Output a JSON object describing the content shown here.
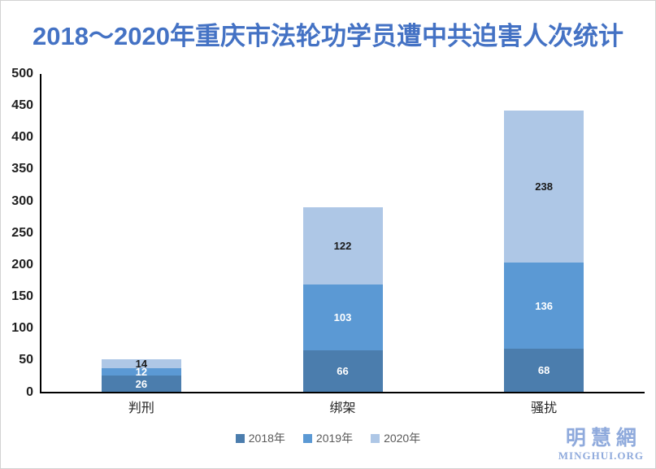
{
  "title": "2018～2020年重庆市法轮功学员遭中共迫害人次统计",
  "title_color": "#4472C4",
  "chart_data": {
    "type": "bar",
    "stacked": true,
    "title": "2018～2020年重庆市法轮功学员遭中共迫害人次统计",
    "categories": [
      "判刑",
      "绑架",
      "骚扰"
    ],
    "series": [
      {
        "name": "2018年",
        "color": "#4B7DAD",
        "label_color": "#ffffff",
        "values": [
          26,
          66,
          68
        ]
      },
      {
        "name": "2019年",
        "color": "#5B99D4",
        "label_color": "#ffffff",
        "values": [
          12,
          103,
          136
        ]
      },
      {
        "name": "2020年",
        "color": "#AEC7E6",
        "label_color": "#1a1a1a",
        "values": [
          14,
          122,
          238
        ]
      }
    ],
    "totals": [
      52,
      291,
      442
    ],
    "xlabel": "",
    "ylabel": "",
    "ylim": [
      0,
      500
    ],
    "yticks": [
      0,
      50,
      100,
      150,
      200,
      250,
      300,
      350,
      400,
      450,
      500
    ],
    "grid": false,
    "axis_color": "#000000",
    "legend_position": "bottom"
  },
  "legend": {
    "items": [
      "2018年",
      "2019年",
      "2020年"
    ]
  },
  "logo": {
    "chinese": "明慧網",
    "english": "MINGHUI.ORG",
    "color": "#8FAADC"
  }
}
